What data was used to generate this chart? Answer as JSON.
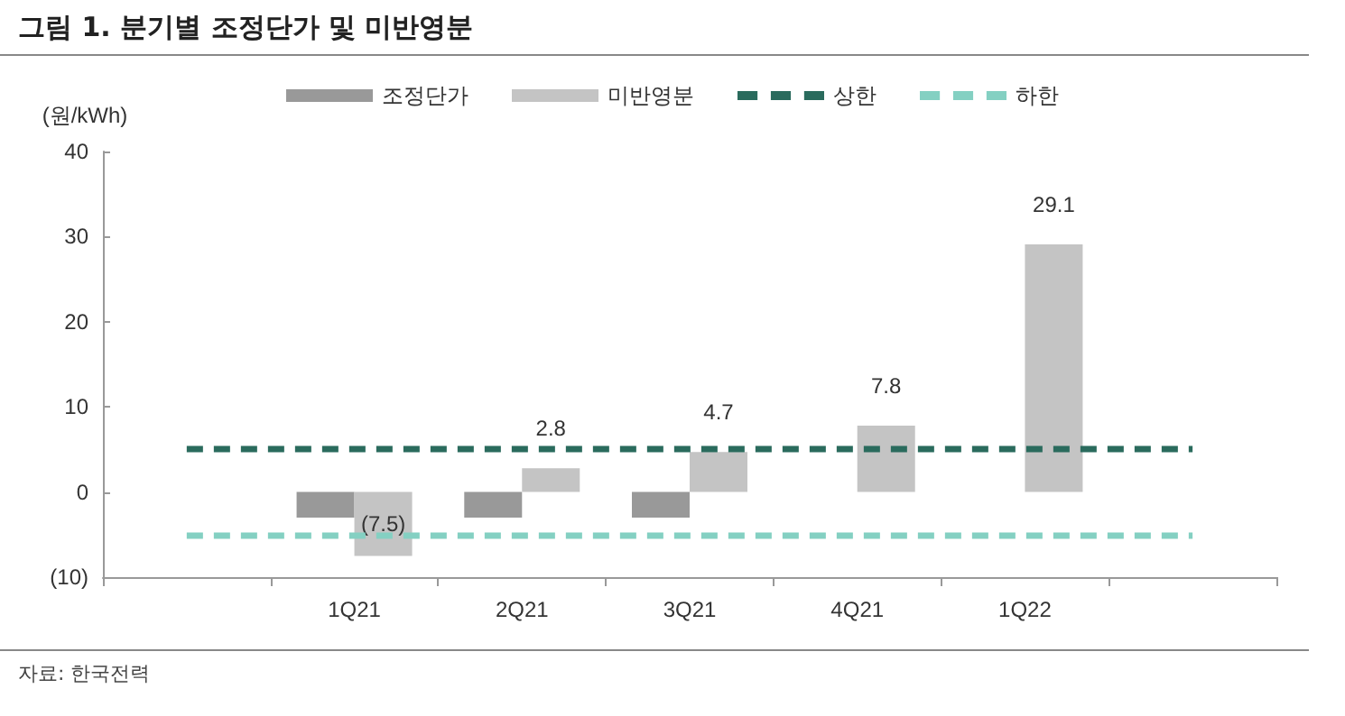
{
  "chart_data": {
    "type": "bar",
    "title": "그림 1. 분기별 조정단가 및 미반영분",
    "ylabel": "(원/kWh)",
    "categories": [
      null,
      "1Q21",
      "2Q21",
      "3Q21",
      "4Q21",
      "1Q22",
      null
    ],
    "series": [
      {
        "name": "조정단가",
        "color": "#999999",
        "values": [
          null,
          -3,
          -3,
          -3,
          null,
          null,
          null
        ]
      },
      {
        "name": "미반영분",
        "color": "#c4c4c4",
        "values": [
          null,
          -7.5,
          2.8,
          4.7,
          7.8,
          29.1,
          null
        ],
        "value_labels": [
          null,
          "(7.5)",
          "2.8",
          "4.7",
          "7.8",
          "29.1",
          null
        ]
      }
    ],
    "ref_lines": [
      {
        "axis": "y",
        "value": 5,
        "label": "상한",
        "color": "#2a6b5d",
        "line_style": "dashed"
      },
      {
        "axis": "y",
        "value": -5,
        "label": "하한",
        "color": "#84d0c2",
        "line_style": "dashed"
      }
    ],
    "ylim": [
      -10,
      40
    ],
    "yticks": [
      {
        "value": -10,
        "label": "(10)"
      },
      0,
      10,
      20,
      30,
      40
    ],
    "grid": false,
    "legend": "top",
    "annotations": [
      "자료: 한국전력"
    ]
  }
}
